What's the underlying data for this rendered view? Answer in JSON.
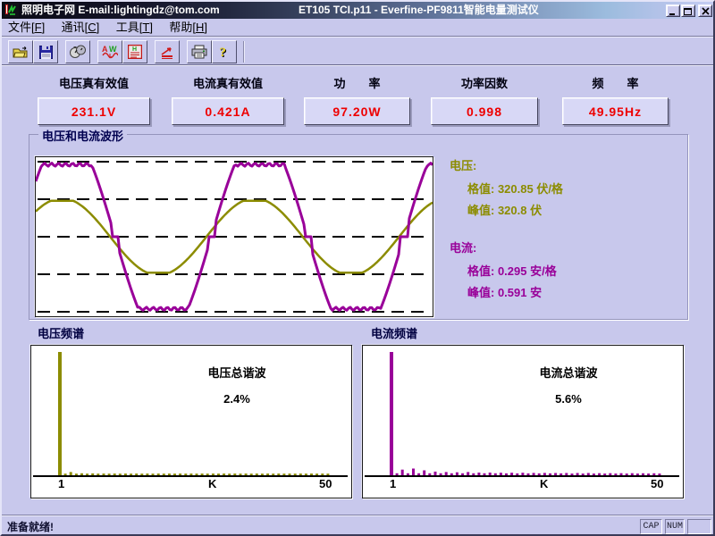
{
  "window": {
    "title_left": "照明电子网  E-mail:lightingdz@tom.com",
    "title_main": "ET105 TCI.p11 - Everfine-PF9811智能电量测试仪"
  },
  "menu": {
    "items": [
      {
        "prefix": "文件[",
        "key": "F",
        "suffix": "]"
      },
      {
        "prefix": "通讯[",
        "key": "C",
        "suffix": "]"
      },
      {
        "prefix": "工具[",
        "key": "T",
        "suffix": "]"
      },
      {
        "prefix": "帮助[",
        "key": "H",
        "suffix": "]"
      }
    ]
  },
  "toolbar": {
    "buttons": [
      "open",
      "save",
      "meters",
      "waveform",
      "harmonic-table",
      "harmonic-trend",
      "print",
      "help"
    ]
  },
  "measurements": [
    {
      "label": "电压真有效值",
      "value": "231.1V"
    },
    {
      "label": "电流真有效值",
      "value": "0.421A"
    },
    {
      "label": "功　　率",
      "value": "97.20W"
    },
    {
      "label": "功率因数",
      "value": "0.998"
    },
    {
      "label": "频　　率",
      "value": "49.95Hz"
    }
  ],
  "waveform_panel": {
    "title": "电压和电流波形",
    "voltage_heading": "电压:",
    "voltage_scale": "格值: 320.85 伏/格",
    "voltage_peak": "峰值: 320.8 伏",
    "current_heading": "电流:",
    "current_scale": "格值: 0.295 安/格",
    "current_peak": "峰值: 0.591 安"
  },
  "spectrum_panels": [
    {
      "label": "电压频谱",
      "annotation_title": "电压总谐波",
      "annotation_value": "2.4%",
      "tick_left": "1",
      "tick_mid": "K",
      "tick_right": "50"
    },
    {
      "label": "电流频谱",
      "annotation_title": "电流总谐波",
      "annotation_value": "5.6%",
      "tick_left": "1",
      "tick_mid": "K",
      "tick_right": "50"
    }
  ],
  "status_bar": {
    "message": "准备就绪!",
    "indicators": [
      {
        "label": "CAP"
      },
      {
        "label": "NUM"
      },
      {
        "label": ""
      }
    ]
  },
  "colors": {
    "background": "#C8C8EC",
    "value_red": "#EE0000",
    "voltage_olive": "#8C8C00",
    "current_purple": "#990099",
    "panel_title_navy": "#000050"
  },
  "chart_data": [
    {
      "type": "line",
      "title": "电压和电流波形",
      "x_axis": "time, about 2 mains cycles visible",
      "grid": "5 dashed horizontal lines spaced 1 division apart",
      "cycles_visible": 2.06,
      "start_phase_deg": 41,
      "series": [
        {
          "name": "电压 (voltage)",
          "color": "#8C8C00",
          "shape": "sine with slightly flattened peaks",
          "amplitude_divisions": 0.96,
          "volts_per_division": 320.85,
          "peak_volts": 320.8,
          "phase_lag_cycles": 0,
          "clip_factor": 1.07
        },
        {
          "name": "电流 (current)",
          "color": "#990099",
          "shape": "clipped sine: flat rippled tops and zero-crossing steps",
          "amplitude_divisions": 1.92,
          "amps_per_division": 0.295,
          "peak_amps": 0.591,
          "phase_lag_cycles": 0.025,
          "clip_factor": 1.45
        }
      ]
    },
    {
      "type": "bar",
      "title": "电压频谱",
      "annotation": "电压总谐波 2.4%",
      "x_ticks": [
        "1",
        "K",
        "50"
      ],
      "x_range": [
        1,
        50
      ],
      "bar_color": "#8C8C00",
      "values_percent_of_fundamental": [
        100,
        1.2,
        2.6,
        1.2,
        1.6,
        1.1,
        1.5,
        1.1,
        1.4,
        1.1,
        1.4,
        1.1,
        1.4,
        1.1,
        1.4,
        1.1,
        1.4,
        1.1,
        1.4,
        1.1,
        1.4,
        1.1,
        1.4,
        1.1,
        1.4,
        1.1,
        1.4,
        1.1,
        1.4,
        1.1,
        1.4,
        1.1,
        1.4,
        1.1,
        1.4,
        1.1,
        1.4,
        1.1,
        1.4,
        1.1,
        1.4,
        1.1,
        1.4,
        1.1,
        1.4,
        1.1,
        1.4,
        1.1,
        1.4,
        1.1
      ]
    },
    {
      "type": "bar",
      "title": "电流频谱",
      "annotation": "电流总谐波 5.6%",
      "x_ticks": [
        "1",
        "K",
        "50"
      ],
      "x_range": [
        1,
        50
      ],
      "bar_color": "#990099",
      "values_percent_of_fundamental": [
        100,
        1.6,
        4.6,
        1.6,
        5.4,
        1.6,
        4.0,
        1.6,
        3.0,
        1.6,
        2.6,
        1.6,
        2.4,
        1.6,
        2.6,
        1.6,
        2.2,
        1.6,
        2.2,
        1.6,
        2.0,
        1.5,
        2.0,
        1.5,
        2.0,
        1.5,
        1.9,
        1.5,
        1.9,
        1.5,
        1.8,
        1.5,
        1.8,
        1.4,
        1.8,
        1.4,
        1.8,
        1.4,
        1.7,
        1.4,
        1.7,
        1.4,
        1.7,
        1.4,
        1.7,
        1.4,
        1.6,
        1.4,
        1.6,
        1.4
      ]
    }
  ]
}
